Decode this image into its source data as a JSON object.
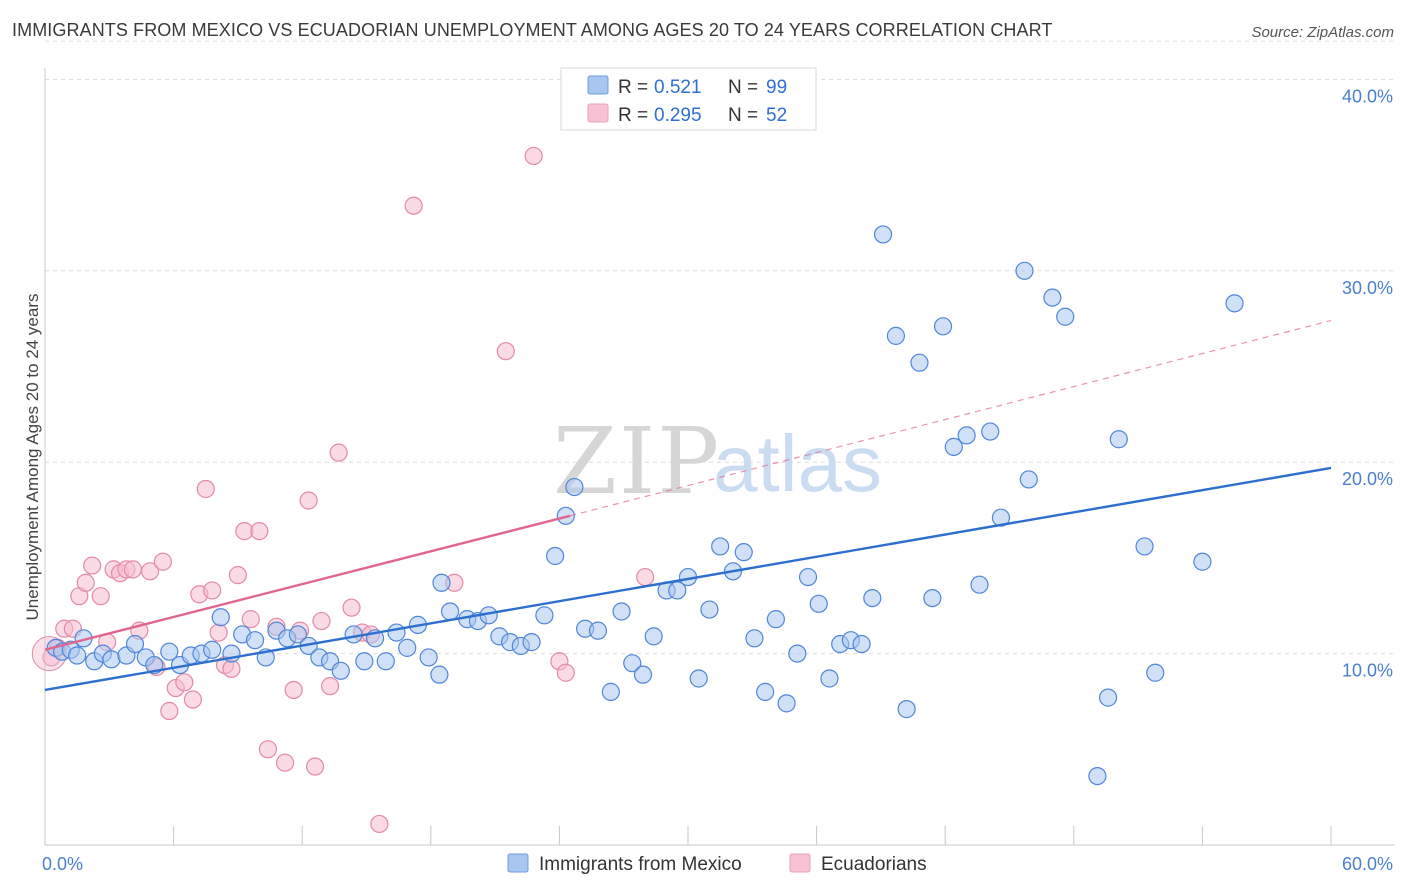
{
  "title": "IMMIGRANTS FROM MEXICO VS ECUADORIAN UNEMPLOYMENT AMONG AGES 20 TO 24 YEARS CORRELATION CHART",
  "source": "Source: ZipAtlas.com",
  "watermark": {
    "zip": "ZIP",
    "atlas": "atlas"
  },
  "colors": {
    "blue": "#4f86d9",
    "blue_fill": "#a9c6ee",
    "blue_line": "#2c6fcf",
    "pink": "#e48aa6",
    "pink_fill": "#f6bcd0",
    "pink_line": "#e06591",
    "tick_text": "#4a7fd0",
    "grid": "#dcdcdc"
  },
  "legend": {
    "r_label": "R =",
    "n_label": "N =",
    "rows": [
      {
        "r": "0.521",
        "n": "99"
      },
      {
        "r": "0.295",
        "n": "52"
      }
    ]
  },
  "chart_data": {
    "type": "scatter",
    "title": "IMMIGRANTS FROM MEXICO VS ECUADORIAN UNEMPLOYMENT AMONG AGES 20 TO 24 YEARS CORRELATION CHART",
    "xlabel": "",
    "ylabel": "Unemployment Among Ages 20 to 24 years",
    "xlim": [
      0,
      60
    ],
    "ylim": [
      0,
      42
    ],
    "x_tick_labels": [
      "0.0%",
      "60.0%"
    ],
    "y_ticks": [
      10,
      20,
      30,
      40
    ],
    "y_tick_labels": [
      "10.0%",
      "20.0%",
      "30.0%",
      "40.0%"
    ],
    "grid": true,
    "legend_position": "top-center",
    "series": [
      {
        "name": "Immigrants from Mexico",
        "color": "#4f86d9",
        "trend": {
          "x": [
            0,
            60
          ],
          "y": [
            8.1,
            19.7
          ]
        },
        "points": [
          [
            0.5,
            10.3
          ],
          [
            0.8,
            10.1
          ],
          [
            1.2,
            10.2
          ],
          [
            1.5,
            9.9
          ],
          [
            1.8,
            10.8
          ],
          [
            2.3,
            9.6
          ],
          [
            2.7,
            10.0
          ],
          [
            3.1,
            9.7
          ],
          [
            3.8,
            9.9
          ],
          [
            4.2,
            10.5
          ],
          [
            4.7,
            9.8
          ],
          [
            5.1,
            9.4
          ],
          [
            5.8,
            10.1
          ],
          [
            6.3,
            9.4
          ],
          [
            6.8,
            9.9
          ],
          [
            7.3,
            10.0
          ],
          [
            7.8,
            10.2
          ],
          [
            8.2,
            11.9
          ],
          [
            8.7,
            10.0
          ],
          [
            9.2,
            11.0
          ],
          [
            9.8,
            10.7
          ],
          [
            10.3,
            9.8
          ],
          [
            10.8,
            11.2
          ],
          [
            11.3,
            10.8
          ],
          [
            11.8,
            11.0
          ],
          [
            12.3,
            10.4
          ],
          [
            12.8,
            9.8
          ],
          [
            13.3,
            9.6
          ],
          [
            13.8,
            9.1
          ],
          [
            14.4,
            11.0
          ],
          [
            14.9,
            9.6
          ],
          [
            15.4,
            10.8
          ],
          [
            15.9,
            9.6
          ],
          [
            16.4,
            11.1
          ],
          [
            16.9,
            10.3
          ],
          [
            17.4,
            11.5
          ],
          [
            17.9,
            9.8
          ],
          [
            18.4,
            8.9
          ],
          [
            18.5,
            13.7
          ],
          [
            18.9,
            12.2
          ],
          [
            19.7,
            11.8
          ],
          [
            20.2,
            11.7
          ],
          [
            20.7,
            12.0
          ],
          [
            21.2,
            10.9
          ],
          [
            21.7,
            10.6
          ],
          [
            22.2,
            10.4
          ],
          [
            22.7,
            10.6
          ],
          [
            23.3,
            12.0
          ],
          [
            23.8,
            15.1
          ],
          [
            24.3,
            17.2
          ],
          [
            24.7,
            18.7
          ],
          [
            25.2,
            11.3
          ],
          [
            25.8,
            11.2
          ],
          [
            26.4,
            8.0
          ],
          [
            26.9,
            12.2
          ],
          [
            27.4,
            9.5
          ],
          [
            27.9,
            8.9
          ],
          [
            28.4,
            10.9
          ],
          [
            29.0,
            13.3
          ],
          [
            29.5,
            13.3
          ],
          [
            30.0,
            14.0
          ],
          [
            30.5,
            8.7
          ],
          [
            31.0,
            12.3
          ],
          [
            31.5,
            15.6
          ],
          [
            32.1,
            14.3
          ],
          [
            32.6,
            15.3
          ],
          [
            33.1,
            10.8
          ],
          [
            33.6,
            8.0
          ],
          [
            34.1,
            11.8
          ],
          [
            34.6,
            7.4
          ],
          [
            35.1,
            10.0
          ],
          [
            35.6,
            14.0
          ],
          [
            36.1,
            12.6
          ],
          [
            36.6,
            8.7
          ],
          [
            37.1,
            10.5
          ],
          [
            37.6,
            10.7
          ],
          [
            38.1,
            10.5
          ],
          [
            38.6,
            12.9
          ],
          [
            39.1,
            31.9
          ],
          [
            39.7,
            26.6
          ],
          [
            40.2,
            7.1
          ],
          [
            40.8,
            25.2
          ],
          [
            41.4,
            12.9
          ],
          [
            41.9,
            27.1
          ],
          [
            42.4,
            20.8
          ],
          [
            43.0,
            21.4
          ],
          [
            43.6,
            13.6
          ],
          [
            44.1,
            21.6
          ],
          [
            44.6,
            17.1
          ],
          [
            45.7,
            30.0
          ],
          [
            45.9,
            19.1
          ],
          [
            47.0,
            28.6
          ],
          [
            47.6,
            27.6
          ],
          [
            49.1,
            3.6
          ],
          [
            49.6,
            7.7
          ],
          [
            50.1,
            21.2
          ],
          [
            51.3,
            15.6
          ],
          [
            51.8,
            9.0
          ],
          [
            54.0,
            14.8
          ],
          [
            55.5,
            28.3
          ]
        ]
      },
      {
        "name": "Ecuadorians",
        "color": "#e48aa6",
        "trend": {
          "x": [
            0,
            24.5
          ],
          "y": [
            10.2,
            17.2
          ]
        },
        "trend_extension": {
          "x": [
            24.5,
            60
          ],
          "y": [
            17.2,
            27.4
          ]
        },
        "points": [
          [
            0.3,
            9.8
          ],
          [
            0.6,
            10.3
          ],
          [
            0.9,
            11.3
          ],
          [
            1.3,
            11.3
          ],
          [
            1.6,
            13.0
          ],
          [
            1.9,
            13.7
          ],
          [
            2.2,
            14.6
          ],
          [
            2.6,
            13.0
          ],
          [
            2.9,
            10.6
          ],
          [
            3.2,
            14.4
          ],
          [
            3.5,
            14.2
          ],
          [
            3.8,
            14.4
          ],
          [
            4.1,
            14.4
          ],
          [
            4.4,
            11.2
          ],
          [
            4.9,
            14.3
          ],
          [
            5.2,
            9.3
          ],
          [
            5.5,
            14.8
          ],
          [
            5.8,
            7.0
          ],
          [
            6.1,
            8.2
          ],
          [
            6.5,
            8.5
          ],
          [
            6.9,
            7.6
          ],
          [
            7.2,
            13.1
          ],
          [
            7.5,
            18.6
          ],
          [
            7.8,
            13.3
          ],
          [
            8.1,
            11.1
          ],
          [
            8.4,
            9.4
          ],
          [
            8.7,
            9.2
          ],
          [
            9.0,
            14.1
          ],
          [
            9.3,
            16.4
          ],
          [
            9.6,
            11.8
          ],
          [
            10.0,
            16.4
          ],
          [
            10.4,
            5.0
          ],
          [
            10.8,
            11.4
          ],
          [
            11.2,
            4.3
          ],
          [
            11.6,
            8.1
          ],
          [
            11.9,
            11.2
          ],
          [
            12.3,
            18.0
          ],
          [
            12.6,
            4.1
          ],
          [
            12.9,
            11.7
          ],
          [
            13.3,
            8.3
          ],
          [
            13.7,
            20.5
          ],
          [
            14.3,
            12.4
          ],
          [
            14.8,
            11.1
          ],
          [
            15.2,
            11.0
          ],
          [
            15.6,
            1.1
          ],
          [
            17.2,
            33.4
          ],
          [
            19.1,
            13.7
          ],
          [
            21.5,
            25.8
          ],
          [
            22.8,
            36.0
          ],
          [
            24.0,
            9.6
          ],
          [
            24.3,
            9.0
          ],
          [
            28.0,
            14.0
          ]
        ]
      }
    ]
  }
}
